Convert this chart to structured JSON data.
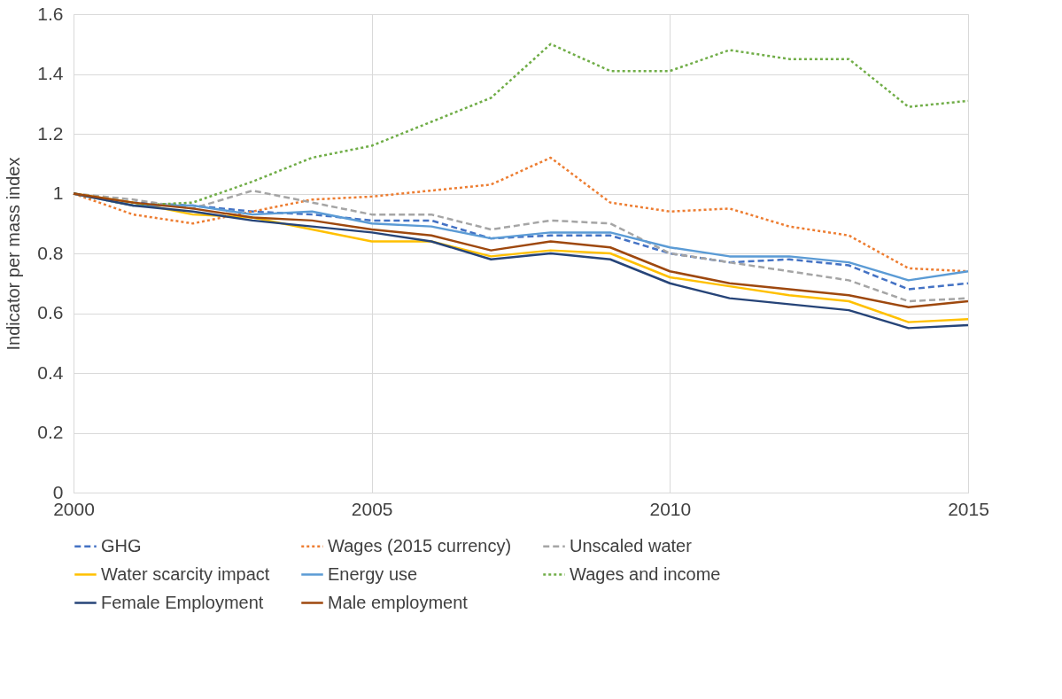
{
  "chart_data": {
    "type": "line",
    "ylabel": "Indicator per mass index",
    "x": [
      2000,
      2001,
      2002,
      2003,
      2004,
      2005,
      2006,
      2007,
      2008,
      2009,
      2010,
      2011,
      2012,
      2013,
      2014,
      2015
    ],
    "xlim": [
      2000,
      2015
    ],
    "xticks": [
      2000,
      2005,
      2010,
      2015
    ],
    "ylim": [
      0,
      1.6
    ],
    "yticks": [
      0,
      0.2,
      0.4,
      0.6,
      0.8,
      1,
      1.2,
      1.4,
      1.6
    ],
    "grid": true,
    "legend": "bottom",
    "marker": "none",
    "series": [
      {
        "name": "GHG",
        "color": "#4472c4",
        "line_style": "dashed",
        "values": [
          1,
          0.97,
          0.96,
          0.94,
          0.93,
          0.91,
          0.91,
          0.85,
          0.86,
          0.86,
          0.8,
          0.77,
          0.78,
          0.76,
          0.68,
          0.7
        ]
      },
      {
        "name": "Wages (2015 currency)",
        "color": "#ed7d31",
        "line_style": "dotted",
        "values": [
          1,
          0.93,
          0.9,
          0.94,
          0.98,
          0.99,
          1.01,
          1.03,
          1.12,
          0.97,
          0.94,
          0.95,
          0.89,
          0.86,
          0.75,
          0.74
        ]
      },
      {
        "name": "Unscaled water",
        "color": "#a5a5a5",
        "line_style": "dashed",
        "values": [
          1,
          0.98,
          0.95,
          1.01,
          0.97,
          0.93,
          0.93,
          0.88,
          0.91,
          0.9,
          0.8,
          0.77,
          0.74,
          0.71,
          0.64,
          0.65
        ]
      },
      {
        "name": "Water scarcity impact",
        "color": "#ffc000",
        "line_style": "solid",
        "values": [
          1,
          0.97,
          0.93,
          0.92,
          0.88,
          0.84,
          0.84,
          0.79,
          0.81,
          0.8,
          0.72,
          0.69,
          0.66,
          0.64,
          0.57,
          0.58
        ]
      },
      {
        "name": "Energy use",
        "color": "#5b9bd5",
        "line_style": "solid",
        "values": [
          1,
          0.96,
          0.96,
          0.93,
          0.94,
          0.9,
          0.89,
          0.85,
          0.87,
          0.87,
          0.82,
          0.79,
          0.79,
          0.77,
          0.71,
          0.74
        ]
      },
      {
        "name": "Wages and income",
        "color": "#70ad47",
        "line_style": "dotted",
        "values": [
          1,
          0.96,
          0.97,
          1.04,
          1.12,
          1.16,
          1.24,
          1.32,
          1.5,
          1.41,
          1.41,
          1.48,
          1.45,
          1.45,
          1.29,
          1.31
        ]
      },
      {
        "name": "Female Employment",
        "color": "#264478",
        "line_style": "solid",
        "values": [
          1,
          0.96,
          0.94,
          0.91,
          0.89,
          0.87,
          0.84,
          0.78,
          0.8,
          0.78,
          0.7,
          0.65,
          0.63,
          0.61,
          0.55,
          0.56
        ]
      },
      {
        "name": "Male employment",
        "color": "#9e480e",
        "line_style": "solid",
        "values": [
          1,
          0.97,
          0.95,
          0.92,
          0.91,
          0.88,
          0.86,
          0.81,
          0.84,
          0.82,
          0.74,
          0.7,
          0.68,
          0.66,
          0.62,
          0.64
        ]
      }
    ]
  }
}
